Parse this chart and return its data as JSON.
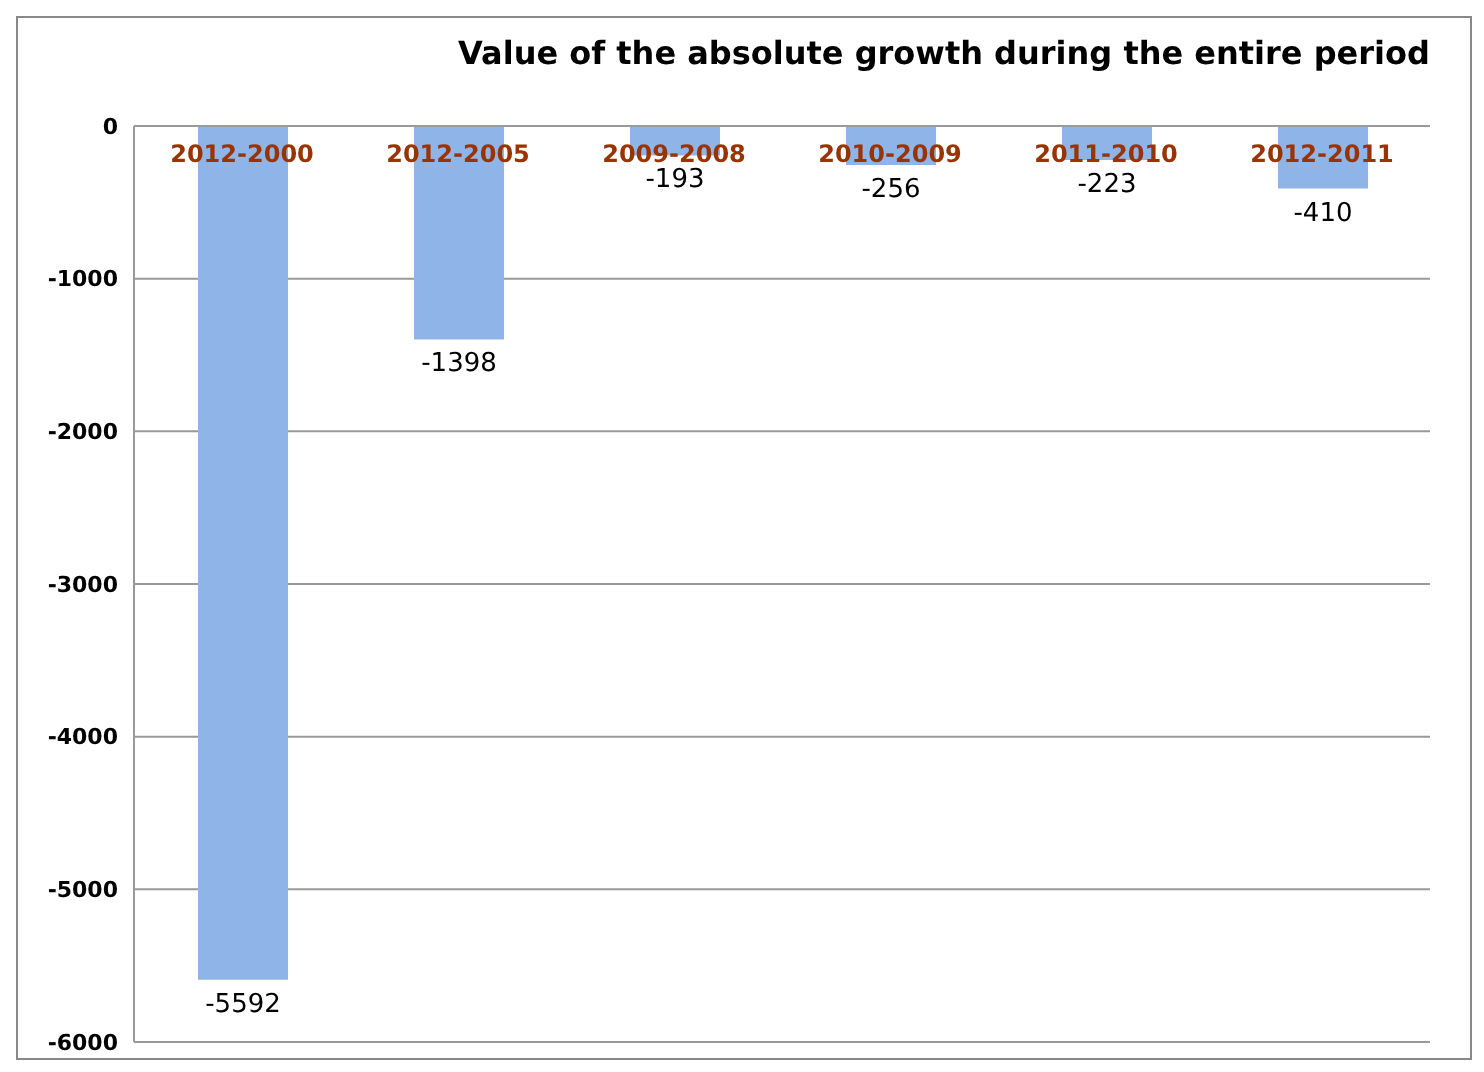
{
  "chart_data": {
    "type": "bar",
    "title": "Value of the absolute growth during the entire period",
    "categories": [
      "2012-2000",
      "2012-2005",
      "2009-2008",
      "2010-2009",
      "2011-2010",
      "2012-2011"
    ],
    "values": [
      -5592,
      -1398,
      -193,
      -256,
      -223,
      -410
    ],
    "color": "#8fb4e8",
    "ylim": [
      -6000,
      0
    ],
    "yticks": [
      0,
      -1000,
      -2000,
      -3000,
      -4000,
      -5000,
      -6000
    ],
    "grid": "y",
    "data_labels": true
  }
}
